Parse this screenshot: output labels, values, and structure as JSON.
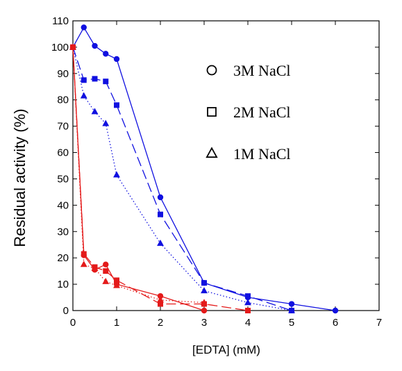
{
  "chart_data": {
    "type": "line",
    "title": "",
    "xlabel": "[EDTA] (mM)",
    "ylabel": "Residual activity (%)",
    "xlim": [
      0,
      7
    ],
    "ylim": [
      0,
      110
    ],
    "xticks": [
      "0",
      "1",
      "2",
      "3",
      "4",
      "5",
      "6",
      "7"
    ],
    "yticks": [
      "0",
      "10",
      "20",
      "30",
      "40",
      "50",
      "60",
      "70",
      "80",
      "90",
      "100",
      "110"
    ],
    "grid": false,
    "legend_position": "top-right",
    "legend": [
      {
        "label": "3M NaCl",
        "marker": "circle"
      },
      {
        "label": "2M NaCl",
        "marker": "square"
      },
      {
        "label": "1M NaCl",
        "marker": "triangle"
      }
    ],
    "series": [
      {
        "group": "blue",
        "marker": "circle",
        "line": "solid",
        "color": "#1010e0",
        "x": [
          0,
          0.25,
          0.5,
          0.75,
          1,
          2,
          3,
          4,
          5,
          6
        ],
        "y": [
          100,
          107.5,
          100.5,
          97.5,
          95.5,
          43,
          10.5,
          5,
          2.5,
          0
        ]
      },
      {
        "group": "blue",
        "marker": "square",
        "line": "dashed",
        "color": "#1010e0",
        "x": [
          0,
          0.25,
          0.5,
          0.75,
          1,
          2,
          3,
          4,
          5
        ],
        "y": [
          100,
          87.5,
          88,
          87,
          78,
          36.5,
          10.5,
          5.5,
          0
        ]
      },
      {
        "group": "blue",
        "marker": "triangle",
        "line": "dotted",
        "color": "#1010e0",
        "x": [
          0,
          0.25,
          0.5,
          0.75,
          1,
          2,
          3,
          4,
          5
        ],
        "y": [
          100,
          81.5,
          75.5,
          71,
          51.5,
          25.5,
          7.5,
          3,
          0
        ]
      },
      {
        "group": "red",
        "marker": "circle",
        "line": "solid",
        "color": "#e41a1a",
        "x": [
          0,
          0.25,
          0.5,
          0.75,
          1,
          2,
          3
        ],
        "y": [
          100,
          21,
          15.5,
          17.5,
          10,
          5.5,
          0
        ]
      },
      {
        "group": "red",
        "marker": "square",
        "line": "dashed",
        "color": "#e41a1a",
        "x": [
          0,
          0.25,
          0.5,
          0.75,
          1,
          2,
          3,
          4
        ],
        "y": [
          100,
          21.5,
          16.5,
          15,
          11.5,
          2.5,
          2.5,
          0
        ]
      },
      {
        "group": "red",
        "marker": "triangle",
        "line": "dotted",
        "color": "#e41a1a",
        "x": [
          0,
          0.25,
          0.5,
          0.75,
          1,
          2,
          3
        ],
        "y": [
          100,
          17.5,
          16,
          11,
          9.5,
          4,
          3
        ]
      }
    ]
  }
}
